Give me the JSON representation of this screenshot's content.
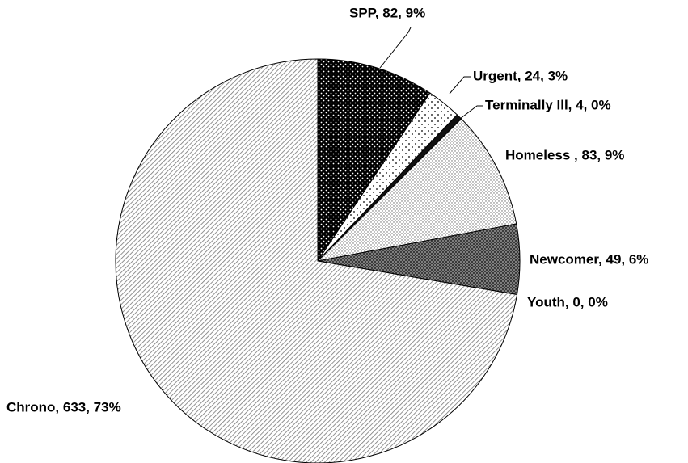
{
  "chart_data": {
    "type": "pie",
    "values": [
      82,
      24,
      4,
      83,
      49,
      0,
      633
    ],
    "value_labels": [
      "SPP, 82, 9%",
      "Urgent, 24, 3%",
      "Terminally Ill, 4, 0%",
      "Homeless , 83, 9%",
      "Newcomer, 49, 6%",
      "Youth, 0, 0%",
      "Chrono, 633, 73%"
    ]
  }
}
